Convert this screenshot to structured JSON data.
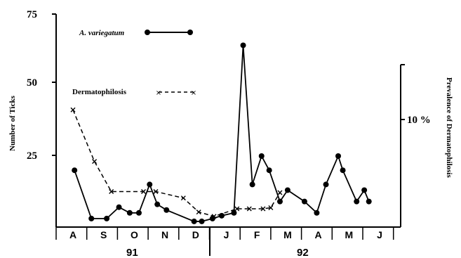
{
  "chart_data": {
    "type": "line",
    "ylabel_left": "Number of Ticks",
    "ylabel_right": "Prevalence of Dermatophilosis",
    "yticks_left": [
      "25",
      "50",
      "75"
    ],
    "ytick_right": "10 %",
    "ylim_left": [
      0,
      75
    ],
    "ylim_right_percent": [
      0,
      20
    ],
    "months": [
      "A",
      "S",
      "O",
      "N",
      "D",
      "J",
      "F",
      "M",
      "A",
      "M",
      "J"
    ],
    "years": [
      "91",
      "92"
    ],
    "grid": false,
    "series": [
      {
        "name": "A. variegatum",
        "style": "solid",
        "marker": "dot",
        "color": "#000000",
        "x": [
          0.05,
          0.6,
          1.1,
          1.5,
          1.85,
          2.15,
          2.5,
          2.75,
          3.05,
          3.95,
          4.2,
          4.55,
          4.85,
          5.25,
          5.55,
          5.85,
          6.15,
          6.4,
          6.75,
          7.0,
          7.55,
          7.95,
          8.25,
          8.65,
          8.8,
          9.25,
          9.5,
          9.65
        ],
        "y": [
          20,
          3,
          3,
          7,
          5,
          5,
          15,
          8,
          6,
          2,
          2,
          3,
          4,
          5,
          64,
          15,
          25,
          20,
          9,
          13,
          9,
          5,
          15,
          25,
          20,
          9,
          13,
          9
        ]
      },
      {
        "name": "Dermatophilosis",
        "style": "dashed",
        "marker": "cross",
        "color": "#000000",
        "x": [
          0.0,
          0.7,
          1.25,
          2.3,
          2.7,
          3.6,
          4.1,
          4.6,
          5.35,
          5.75,
          6.2,
          6.45,
          6.75
        ],
        "y": [
          10.9,
          6.1,
          3.3,
          3.3,
          3.3,
          2.7,
          1.4,
          1.0,
          1.7,
          1.7,
          1.7,
          1.8,
          3.2
        ]
      }
    ],
    "legend": [
      {
        "label": "A. variegatum",
        "italic": true,
        "series": 0
      },
      {
        "label": "Dermatophilosis",
        "italic": false,
        "series": 1
      }
    ]
  }
}
